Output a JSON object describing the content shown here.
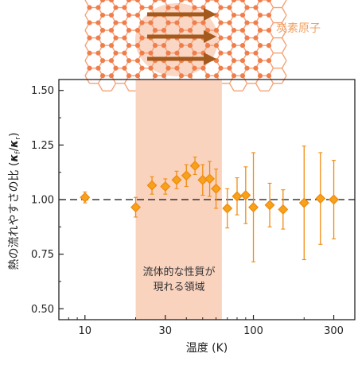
{
  "colors": {
    "marker_fill": "#F7A21B",
    "marker_edge": "#F28C0F",
    "errorbar": "#F28C0F",
    "highlight": "#FAD3BF",
    "atom": "#F07E4C",
    "bond": "#F4A277",
    "arrow": "#A35A1C",
    "carbon_label": "#F0A060"
  },
  "illustration": {
    "label": "炭素原子"
  },
  "chart_data": {
    "type": "scatter",
    "xscale": "log",
    "xlim": [
      7,
      400
    ],
    "ylim": [
      0.45,
      1.55
    ],
    "xlabel": "温度 (K)",
    "ylabel": "熱の流れやすさの比 (κf/κr)",
    "ylabel_main": "熱の流れやすさの比 (",
    "ylabel_k1": "κ",
    "ylabel_s1": "f",
    "ylabel_slash": "/",
    "ylabel_k2": "κ",
    "ylabel_s2": "r",
    "ylabel_close": ")",
    "xticks": [
      10,
      30,
      100,
      300
    ],
    "xtick_labels": [
      "10",
      "30",
      "100",
      "300"
    ],
    "yticks": [
      0.5,
      0.75,
      1.0,
      1.25,
      1.5
    ],
    "ytick_labels": [
      "0.50",
      "0.75",
      "1.00",
      "1.25",
      "1.50"
    ],
    "reference_line": 1.0,
    "highlight_region": [
      20,
      65
    ],
    "annotation": [
      "流体的な性質が",
      "現れる領域"
    ],
    "points": [
      {
        "x": 10,
        "y": 1.01,
        "err": 0.025
      },
      {
        "x": 20,
        "y": 0.965,
        "err": 0.045
      },
      {
        "x": 25,
        "y": 1.065,
        "err": 0.04
      },
      {
        "x": 30,
        "y": 1.06,
        "err": 0.035
      },
      {
        "x": 35,
        "y": 1.09,
        "err": 0.04
      },
      {
        "x": 40,
        "y": 1.11,
        "err": 0.05
      },
      {
        "x": 45,
        "y": 1.155,
        "err": 0.04
      },
      {
        "x": 50,
        "y": 1.09,
        "err": 0.07
      },
      {
        "x": 55,
        "y": 1.095,
        "err": 0.08
      },
      {
        "x": 60,
        "y": 1.05,
        "err": 0.09
      },
      {
        "x": 70,
        "y": 0.96,
        "err": 0.09
      },
      {
        "x": 80,
        "y": 1.015,
        "err": 0.085
      },
      {
        "x": 90,
        "y": 1.02,
        "err": 0.13
      },
      {
        "x": 100,
        "y": 0.965,
        "err": 0.25
      },
      {
        "x": 125,
        "y": 0.975,
        "err": 0.1
      },
      {
        "x": 150,
        "y": 0.955,
        "err": 0.09
      },
      {
        "x": 200,
        "y": 0.985,
        "err": 0.26
      },
      {
        "x": 250,
        "y": 1.005,
        "err": 0.21
      },
      {
        "x": 300,
        "y": 1.0,
        "err": 0.18
      }
    ]
  }
}
